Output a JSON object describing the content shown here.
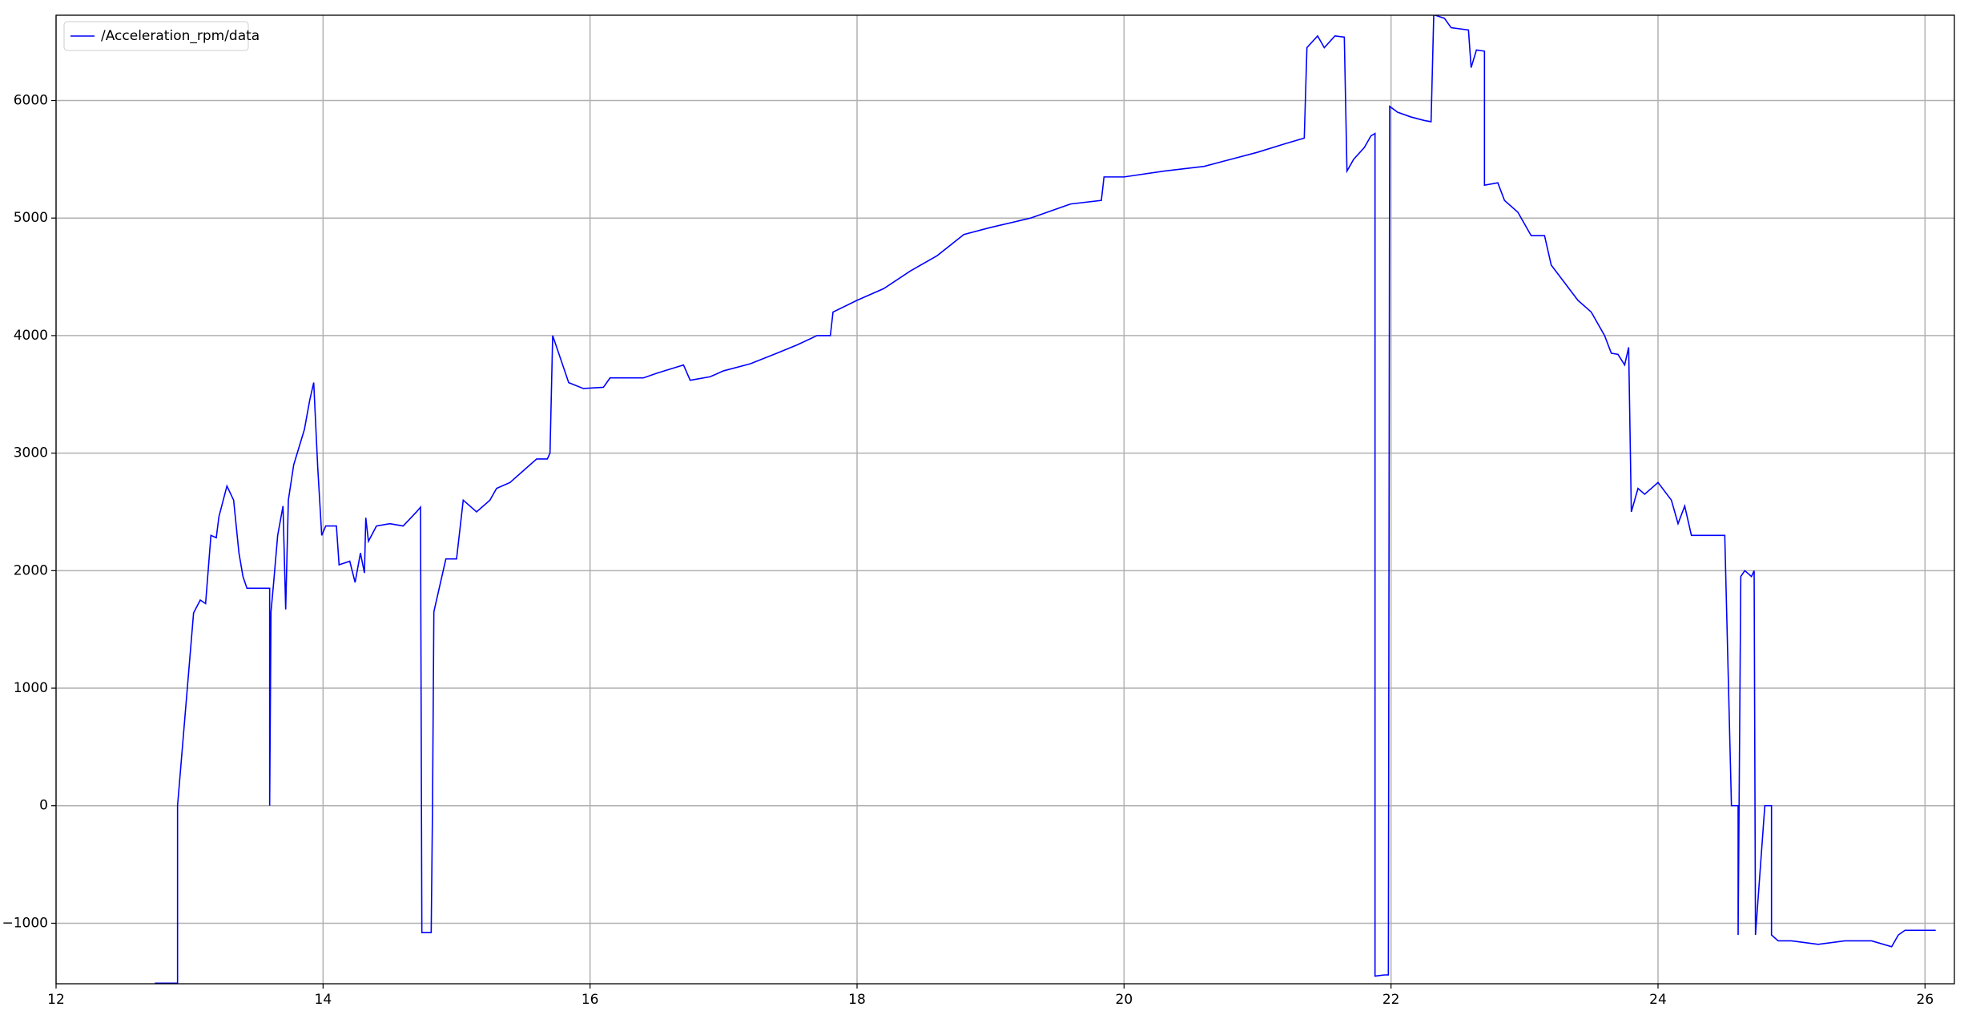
{
  "chart_data": {
    "type": "line",
    "x": [
      12.74,
      12.91,
      12.91,
      13.03,
      13.08,
      13.12,
      13.16,
      13.2,
      13.22,
      13.28,
      13.33,
      13.37,
      13.4,
      13.43,
      13.6,
      13.6,
      13.61,
      13.63,
      13.66,
      13.7,
      13.72,
      13.74,
      13.78,
      13.82,
      13.86,
      13.9,
      13.93,
      13.96,
      13.99,
      14.02,
      14.1,
      14.12,
      14.2,
      14.24,
      14.28,
      14.31,
      14.32,
      14.34,
      14.4,
      14.5,
      14.6,
      14.7,
      14.73,
      14.74,
      14.81,
      14.82,
      14.83,
      14.87,
      14.92,
      15.0,
      15.05,
      15.15,
      15.25,
      15.3,
      15.4,
      15.5,
      15.6,
      15.68,
      15.7,
      15.72,
      15.78,
      15.84,
      15.95,
      16.1,
      16.15,
      16.4,
      16.5,
      16.7,
      16.75,
      16.9,
      17.0,
      17.2,
      17.4,
      17.55,
      17.7,
      17.8,
      17.82,
      18.0,
      18.2,
      18.4,
      18.6,
      18.8,
      19.0,
      19.3,
      19.6,
      19.83,
      19.85,
      20.0,
      20.3,
      20.6,
      20.8,
      21.0,
      21.2,
      21.35,
      21.37,
      21.45,
      21.5,
      21.58,
      21.65,
      21.67,
      21.72,
      21.8,
      21.85,
      21.88,
      21.88,
      21.95,
      21.98,
      21.99,
      22.05,
      22.15,
      22.25,
      22.3,
      22.32,
      22.4,
      22.45,
      22.58,
      22.6,
      22.64,
      22.7,
      22.7,
      22.8,
      22.85,
      22.95,
      23.05,
      23.15,
      23.2,
      23.3,
      23.4,
      23.5,
      23.6,
      23.65,
      23.7,
      23.75,
      23.78,
      23.8,
      23.85,
      23.9,
      24.0,
      24.1,
      24.15,
      24.2,
      24.25,
      24.5,
      24.55,
      24.6,
      24.6,
      24.62,
      24.65,
      24.7,
      24.72,
      24.73,
      24.8,
      24.85,
      24.85,
      24.9,
      25.0,
      25.2,
      25.4,
      25.6,
      25.75,
      25.8,
      25.85,
      26.0,
      26.08
    ],
    "series": [
      {
        "name": "/Acceleration_rpm/data",
        "color": "#0000ff",
        "values": [
          -1510,
          -1510,
          0,
          1640,
          1750,
          1720,
          2300,
          2280,
          2460,
          2720,
          2600,
          2150,
          1950,
          1850,
          1850,
          0,
          1650,
          1900,
          2300,
          2550,
          1670,
          2600,
          2900,
          3050,
          3200,
          3450,
          3600,
          2880,
          2300,
          2380,
          2380,
          2050,
          2080,
          1900,
          2150,
          1980,
          2450,
          2250,
          2380,
          2400,
          2380,
          2500,
          2540,
          -1080,
          -1080,
          0,
          1650,
          1850,
          2100,
          2100,
          2600,
          2500,
          2600,
          2700,
          2750,
          2850,
          2950,
          2950,
          3000,
          4000,
          3800,
          3600,
          3550,
          3560,
          3640,
          3640,
          3680,
          3750,
          3620,
          3650,
          3700,
          3760,
          3850,
          3920,
          4000,
          4000,
          4200,
          4300,
          4400,
          4550,
          4680,
          4860,
          4920,
          5000,
          5120,
          5150,
          5350,
          5350,
          5400,
          5440,
          5500,
          5560,
          5630,
          5680,
          6450,
          6550,
          6450,
          6550,
          6540,
          5400,
          5500,
          5600,
          5700,
          5720,
          -1450,
          -1440,
          -1440,
          5950,
          5900,
          5860,
          5830,
          5820,
          6730,
          6700,
          6620,
          6600,
          6280,
          6430,
          6420,
          5280,
          5300,
          5150,
          5050,
          4850,
          4850,
          4600,
          4450,
          4300,
          4200,
          4000,
          3850,
          3840,
          3750,
          3900,
          2500,
          2700,
          2650,
          2750,
          2600,
          2400,
          2550,
          2300,
          2300,
          0,
          0,
          -1100,
          1950,
          2000,
          1950,
          2000,
          -1100,
          0,
          0,
          -1100,
          -1150,
          -1150,
          -1180,
          -1150,
          -1150,
          -1200,
          -1100,
          -1060,
          -1060,
          -1060
        ]
      }
    ],
    "xlim": [
      12,
      26.22
    ],
    "xticks": [
      12,
      14,
      16,
      18,
      20,
      22,
      24,
      26
    ],
    "ylim": [
      -1515,
      6726
    ],
    "yticks": [
      {
        "value": -1000,
        "label": "−1000"
      },
      0,
      1000,
      2000,
      3000,
      4000,
      5000,
      6000
    ],
    "grid": true,
    "legend": "upper-left"
  }
}
